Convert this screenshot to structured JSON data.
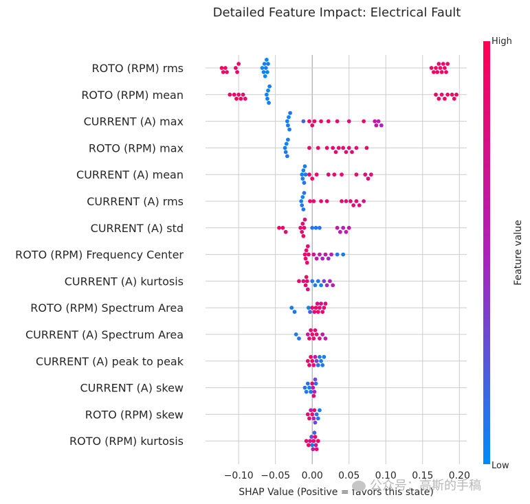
{
  "chart_data": {
    "type": "scatter",
    "subtype": "shap-beeswarm",
    "title": "Detailed Feature Impact: Electrical Fault",
    "xlabel": "SHAP Value (Positive = favors this state)",
    "xlim": [
      -0.145,
      0.21
    ],
    "xticks": [
      -0.1,
      -0.05,
      0.0,
      0.05,
      0.1,
      0.15,
      0.2
    ],
    "xtick_labels": [
      "−0.10",
      "−0.05",
      "0.00",
      "0.05",
      "0.10",
      "0.15",
      "0.20"
    ],
    "grid": true,
    "colorbar": {
      "label": "Feature value",
      "high_label": "High",
      "low_label": "Low",
      "low_color": "#008bfb",
      "mid_color": "#b01fbb",
      "high_color": "#ff0052"
    },
    "features": [
      {
        "name": "ROTO (RPM) rms",
        "points": [
          [
            -0.123,
            0.95
          ],
          [
            -0.121,
            0.9
          ],
          [
            -0.118,
            0.92
          ],
          [
            -0.116,
            0.88
          ],
          [
            -0.104,
            0.9
          ],
          [
            -0.102,
            0.85
          ],
          [
            -0.1,
            0.93
          ],
          [
            -0.068,
            0.02
          ],
          [
            -0.066,
            0.06
          ],
          [
            -0.065,
            0.04
          ],
          [
            -0.064,
            0.0
          ],
          [
            -0.063,
            0.05
          ],
          [
            -0.062,
            0.03
          ],
          [
            -0.061,
            0.01
          ],
          [
            -0.06,
            0.06
          ],
          [
            0.162,
            0.92
          ],
          [
            0.165,
            0.88
          ],
          [
            0.168,
            0.95
          ],
          [
            0.17,
            0.9
          ],
          [
            0.172,
            0.93
          ],
          [
            0.174,
            0.89
          ],
          [
            0.176,
            0.96
          ],
          [
            0.178,
            0.91
          ],
          [
            0.18,
            0.94
          ],
          [
            0.182,
            0.9
          ],
          [
            0.184,
            0.93
          ]
        ]
      },
      {
        "name": "ROTO (RPM) mean",
        "points": [
          [
            -0.112,
            0.92
          ],
          [
            -0.106,
            0.9
          ],
          [
            -0.103,
            0.95
          ],
          [
            -0.1,
            0.88
          ],
          [
            -0.097,
            0.93
          ],
          [
            -0.094,
            0.9
          ],
          [
            -0.091,
            0.86
          ],
          [
            -0.062,
            0.03
          ],
          [
            -0.061,
            0.05
          ],
          [
            -0.06,
            0.01
          ],
          [
            -0.059,
            0.06
          ],
          [
            -0.058,
            0.04
          ],
          [
            0.168,
            0.9
          ],
          [
            0.172,
            0.93
          ],
          [
            0.176,
            0.88
          ],
          [
            0.18,
            0.95
          ],
          [
            0.184,
            0.91
          ],
          [
            0.19,
            0.94
          ],
          [
            0.193,
            0.9
          ],
          [
            0.196,
            0.93
          ]
        ]
      },
      {
        "name": "CURRENT (A) max",
        "points": [
          [
            -0.034,
            0.05
          ],
          [
            -0.033,
            0.08
          ],
          [
            -0.032,
            0.03
          ],
          [
            -0.031,
            0.06
          ],
          [
            -0.03,
            0.1
          ],
          [
            -0.012,
            0.2
          ],
          [
            -0.004,
            0.88
          ],
          [
            0.0,
            0.85
          ],
          [
            0.003,
            0.9
          ],
          [
            0.012,
            0.88
          ],
          [
            0.022,
            0.9
          ],
          [
            0.034,
            0.85
          ],
          [
            0.05,
            0.8
          ],
          [
            0.07,
            0.86
          ],
          [
            0.085,
            0.6
          ],
          [
            0.09,
            0.55
          ],
          [
            0.094,
            0.5
          ],
          [
            0.087,
            0.65
          ]
        ]
      },
      {
        "name": "ROTO (RPM) max",
        "points": [
          [
            -0.037,
            0.05
          ],
          [
            -0.036,
            0.08
          ],
          [
            -0.035,
            0.03
          ],
          [
            -0.034,
            0.1
          ],
          [
            -0.033,
            0.06
          ],
          [
            -0.004,
            0.88
          ],
          [
            0.008,
            0.86
          ],
          [
            0.02,
            0.9
          ],
          [
            0.028,
            0.85
          ],
          [
            0.032,
            0.88
          ],
          [
            0.036,
            0.86
          ],
          [
            0.042,
            0.84
          ],
          [
            0.046,
            0.82
          ],
          [
            0.05,
            0.8
          ],
          [
            0.054,
            0.83
          ],
          [
            0.06,
            0.86
          ],
          [
            0.074,
            0.88
          ]
        ]
      },
      {
        "name": "CURRENT (A) mean",
        "points": [
          [
            -0.014,
            0.05
          ],
          [
            -0.013,
            0.08
          ],
          [
            -0.012,
            0.03
          ],
          [
            -0.011,
            0.1
          ],
          [
            -0.01,
            0.06
          ],
          [
            -0.009,
            0.12
          ],
          [
            -0.004,
            0.88
          ],
          [
            0.0,
            0.9
          ],
          [
            0.006,
            0.86
          ],
          [
            0.022,
            0.85
          ],
          [
            0.03,
            0.88
          ],
          [
            0.04,
            0.83
          ],
          [
            0.06,
            0.86
          ],
          [
            0.072,
            0.8
          ],
          [
            0.076,
            0.82
          ],
          [
            0.08,
            0.78
          ]
        ]
      },
      {
        "name": "CURRENT (A) rms",
        "points": [
          [
            -0.015,
            0.05
          ],
          [
            -0.014,
            0.1
          ],
          [
            -0.013,
            0.03
          ],
          [
            -0.012,
            0.08
          ],
          [
            -0.011,
            0.12
          ],
          [
            -0.003,
            0.88
          ],
          [
            0.002,
            0.9
          ],
          [
            0.012,
            0.86
          ],
          [
            0.02,
            0.88
          ],
          [
            0.04,
            0.85
          ],
          [
            0.046,
            0.83
          ],
          [
            0.052,
            0.86
          ],
          [
            0.056,
            0.84
          ],
          [
            0.06,
            0.8
          ],
          [
            0.064,
            0.78
          ],
          [
            0.07,
            0.76
          ]
        ]
      },
      {
        "name": "CURRENT (A) std",
        "points": [
          [
            -0.045,
            0.92
          ],
          [
            -0.04,
            0.9
          ],
          [
            -0.036,
            0.88
          ],
          [
            -0.016,
            0.85
          ],
          [
            -0.014,
            0.88
          ],
          [
            -0.013,
            0.8
          ],
          [
            -0.012,
            0.9
          ],
          [
            -0.011,
            0.86
          ],
          [
            -0.01,
            0.82
          ],
          [
            0.0,
            0.1
          ],
          [
            0.005,
            0.08
          ],
          [
            0.01,
            0.12
          ],
          [
            0.034,
            0.6
          ],
          [
            0.038,
            0.55
          ],
          [
            0.042,
            0.5
          ],
          [
            0.046,
            0.58
          ],
          [
            0.05,
            0.62
          ]
        ]
      },
      {
        "name": "ROTO (RPM) Frequency Center",
        "points": [
          [
            -0.01,
            0.88
          ],
          [
            -0.009,
            0.85
          ],
          [
            -0.008,
            0.9
          ],
          [
            -0.007,
            0.86
          ],
          [
            -0.006,
            0.83
          ],
          [
            -0.005,
            0.87
          ],
          [
            0.002,
            0.7
          ],
          [
            0.006,
            0.6
          ],
          [
            0.01,
            0.55
          ],
          [
            0.014,
            0.5
          ],
          [
            0.018,
            0.6
          ],
          [
            0.022,
            0.45
          ],
          [
            0.026,
            0.55
          ],
          [
            0.034,
            0.12
          ],
          [
            0.042,
            0.08
          ]
        ]
      },
      {
        "name": "CURRENT (A) kurtosis",
        "points": [
          [
            -0.018,
            0.88
          ],
          [
            -0.012,
            0.82
          ],
          [
            -0.009,
            0.85
          ],
          [
            -0.008,
            0.9
          ],
          [
            -0.007,
            0.86
          ],
          [
            -0.006,
            0.83
          ],
          [
            0.0,
            0.1
          ],
          [
            0.004,
            0.08
          ],
          [
            0.008,
            0.12
          ],
          [
            0.012,
            0.05
          ],
          [
            0.016,
            0.35
          ],
          [
            0.02,
            0.45
          ],
          [
            0.024,
            0.5
          ],
          [
            0.028,
            0.55
          ]
        ]
      },
      {
        "name": "ROTO (RPM) Spectrum Area",
        "points": [
          [
            -0.028,
            0.08
          ],
          [
            -0.024,
            0.1
          ],
          [
            -0.005,
            0.05
          ],
          [
            -0.003,
            0.2
          ],
          [
            0.0,
            0.88
          ],
          [
            0.003,
            0.85
          ],
          [
            0.005,
            0.9
          ],
          [
            0.007,
            0.8
          ],
          [
            0.008,
            0.86
          ],
          [
            0.01,
            0.83
          ],
          [
            0.012,
            0.75
          ],
          [
            0.014,
            0.82
          ],
          [
            0.016,
            0.86
          ],
          [
            0.018,
            0.8
          ]
        ]
      },
      {
        "name": "CURRENT (A) Spectrum Area",
        "points": [
          [
            -0.022,
            0.08
          ],
          [
            -0.018,
            0.1
          ],
          [
            -0.006,
            0.6
          ],
          [
            -0.004,
            0.88
          ],
          [
            -0.002,
            0.85
          ],
          [
            0.0,
            0.9
          ],
          [
            0.002,
            0.82
          ],
          [
            0.004,
            0.86
          ],
          [
            0.006,
            0.8
          ],
          [
            0.01,
            0.7
          ],
          [
            0.014,
            0.6
          ],
          [
            0.018,
            0.55
          ]
        ]
      },
      {
        "name": "CURRENT (A) peak to peak",
        "points": [
          [
            -0.006,
            0.88
          ],
          [
            -0.004,
            0.85
          ],
          [
            -0.002,
            0.9
          ],
          [
            0.0,
            0.86
          ],
          [
            0.002,
            0.83
          ],
          [
            0.004,
            0.6
          ],
          [
            0.006,
            0.3
          ],
          [
            0.008,
            0.15
          ],
          [
            0.01,
            0.1
          ],
          [
            0.012,
            0.08
          ],
          [
            0.014,
            0.05
          ],
          [
            0.016,
            0.06
          ]
        ]
      },
      {
        "name": "CURRENT (A) skew",
        "points": [
          [
            -0.01,
            0.1
          ],
          [
            -0.008,
            0.08
          ],
          [
            -0.006,
            0.12
          ],
          [
            -0.004,
            0.05
          ],
          [
            -0.002,
            0.1
          ],
          [
            0.0,
            0.85
          ],
          [
            0.001,
            0.6
          ],
          [
            0.002,
            0.88
          ],
          [
            0.003,
            0.5
          ],
          [
            0.004,
            0.3
          ],
          [
            0.005,
            0.1
          ]
        ]
      },
      {
        "name": "ROTO (RPM) skew",
        "points": [
          [
            -0.006,
            0.85
          ],
          [
            -0.004,
            0.88
          ],
          [
            -0.002,
            0.6
          ],
          [
            0.0,
            0.9
          ],
          [
            0.002,
            0.5
          ],
          [
            0.003,
            0.82
          ],
          [
            0.004,
            0.3
          ],
          [
            0.006,
            0.15
          ],
          [
            0.008,
            0.1
          ],
          [
            0.01,
            0.05
          ]
        ]
      },
      {
        "name": "ROTO (RPM) kurtosis",
        "points": [
          [
            -0.008,
            0.86
          ],
          [
            -0.005,
            0.9
          ],
          [
            -0.003,
            0.8
          ],
          [
            -0.001,
            0.3
          ],
          [
            0.0,
            0.1
          ],
          [
            0.001,
            0.55
          ],
          [
            0.002,
            0.85
          ],
          [
            0.003,
            0.2
          ],
          [
            0.004,
            0.88
          ],
          [
            0.005,
            0.6
          ],
          [
            0.006,
            0.82
          ],
          [
            0.008,
            0.9
          ]
        ]
      }
    ]
  },
  "watermark": "公众号：高斯的手稿"
}
